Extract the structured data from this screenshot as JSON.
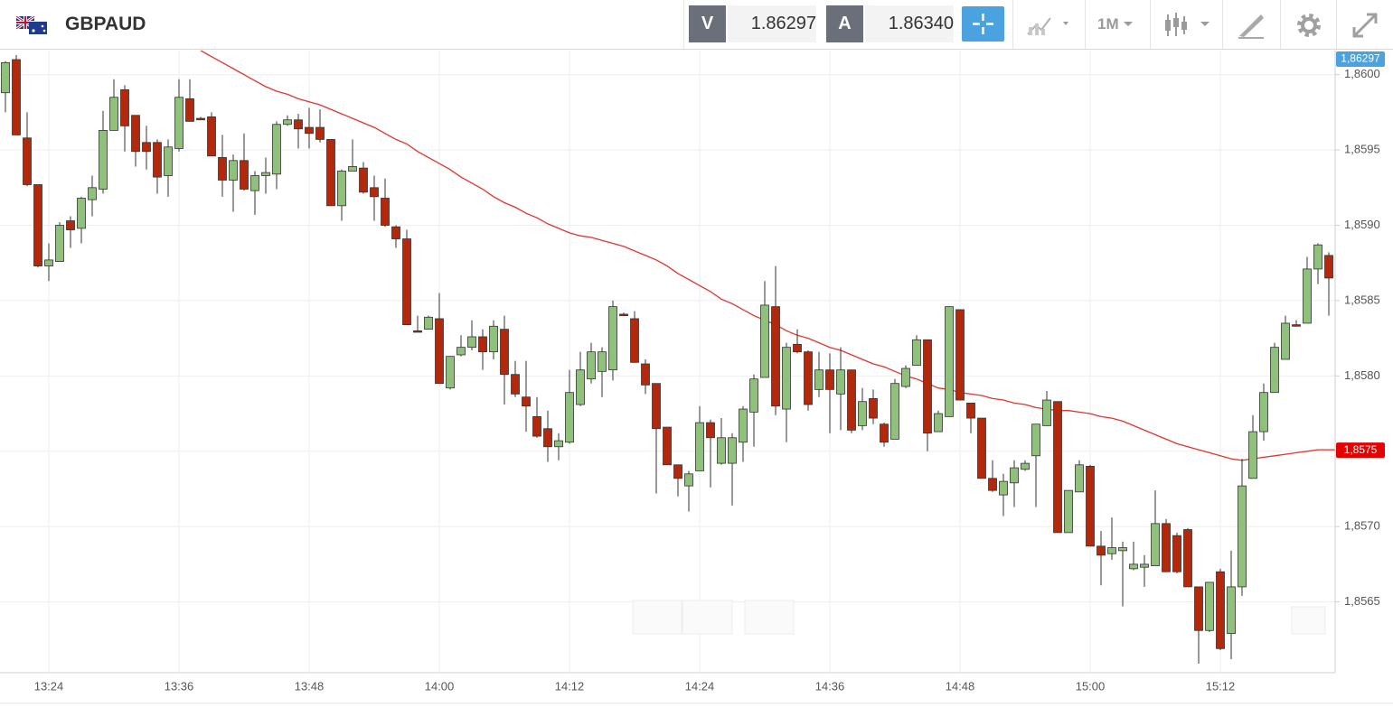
{
  "header": {
    "symbol": "GBPAUD",
    "sell_label": "V",
    "sell_price": "1.86297",
    "buy_label": "A",
    "buy_price": "1.86340",
    "timeframe": "1M"
  },
  "chart_data": {
    "type": "candlestick",
    "categories": [
      null,
      null,
      null,
      null,
      "13:24",
      null,
      null,
      null,
      null,
      null,
      null,
      null,
      null,
      null,
      null,
      null,
      "13:36",
      null,
      null,
      null,
      null,
      null,
      null,
      null,
      null,
      null,
      null,
      null,
      "13:48",
      null,
      null,
      null,
      null,
      null,
      null,
      null,
      null,
      null,
      null,
      null,
      "14:00",
      null,
      null,
      null,
      null,
      null,
      null,
      null,
      null,
      null,
      null,
      null,
      "14:12",
      null,
      null,
      null,
      null,
      null,
      null,
      null,
      null,
      null,
      null,
      null,
      "14:24",
      null,
      null,
      null,
      null,
      null,
      null,
      null,
      null,
      null,
      null,
      null,
      "14:36",
      null,
      null,
      null,
      null,
      null,
      null,
      null,
      null,
      null,
      null,
      null,
      "14:48",
      null,
      null,
      null,
      null,
      null,
      null,
      null,
      null,
      null,
      null,
      null,
      "15:00",
      null,
      null,
      null,
      null,
      null,
      null,
      null,
      null,
      null,
      null,
      null,
      "15:12",
      null,
      null,
      null,
      null,
      null,
      null,
      null,
      null,
      null,
      null
    ],
    "open": [
      1.85988,
      1.8601,
      1.85958,
      1.85927,
      1.85873,
      1.85876,
      1.85903,
      1.85898,
      1.85917,
      1.85924,
      1.85963,
      1.8599,
      1.85973,
      1.85955,
      1.85955,
      1.85933,
      1.85951,
      1.85984,
      1.85971,
      1.85972,
      1.85945,
      1.8593,
      1.85943,
      1.85923,
      1.85933,
      1.85934,
      1.85967,
      1.8597,
      1.85965,
      1.85965,
      1.85957,
      1.85913,
      1.85936,
      1.85938,
      1.85925,
      1.85918,
      1.85899,
      1.85891,
      1.8583,
      1.85831,
      1.85838,
      1.85792,
      1.85814,
      1.85819,
      1.85826,
      1.85816,
      1.85831,
      1.85801,
      1.85786,
      1.85773,
      1.85765,
      1.85753,
      1.85756,
      1.85781,
      1.85798,
      1.85803,
      1.85804,
      1.85841,
      1.85838,
      1.85808,
      1.85795,
      1.85766,
      1.85741,
      1.85727,
      1.85737,
      1.85769,
      1.85742,
      1.85742,
      1.85756,
      1.85776,
      1.85799,
      1.85846,
      1.85778,
      1.85821,
      1.85816,
      1.85791,
      1.85804,
      1.85788,
      1.85804,
      1.85767,
      1.85785,
      1.85768,
      1.85758,
      1.85793,
      1.85807,
      1.85824,
      1.85763,
      1.85773,
      1.85844,
      1.85782,
      1.85772,
      1.85732,
      1.85721,
      1.85729,
      1.85738,
      1.85747,
      1.85767,
      1.85783,
      1.85696,
      1.85723,
      1.8574,
      1.85687,
      1.85682,
      1.85684,
      1.85672,
      1.85673,
      1.85674,
      1.85702,
      1.85694,
      1.85698,
      1.8566,
      1.85631,
      1.8567,
      1.85629,
      1.8566,
      1.85732,
      1.85763,
      1.85789,
      1.85811,
      1.85834,
      1.85835,
      1.85871,
      1.8588
    ],
    "high": [
      1.86009,
      1.86013,
      1.85975,
      1.85927,
      1.85888,
      1.85902,
      1.85906,
      1.85919,
      1.85933,
      1.85976,
      1.85997,
      1.85993,
      1.85973,
      1.85966,
      1.85957,
      1.85957,
      1.85997,
      1.85997,
      1.85972,
      1.85975,
      1.8596,
      1.85947,
      1.85961,
      1.85936,
      1.85945,
      1.85969,
      1.85973,
      1.85974,
      1.85978,
      1.85977,
      1.85957,
      1.85937,
      1.85957,
      1.85942,
      1.85933,
      1.85931,
      1.859,
      1.85897,
      1.8584,
      1.8584,
      1.85855,
      1.85813,
      1.85827,
      1.85837,
      1.85831,
      1.85837,
      1.8584,
      1.8581,
      1.8581,
      1.85786,
      1.85777,
      1.85762,
      1.85804,
      1.85816,
      1.85822,
      1.85819,
      1.8585,
      1.85842,
      1.85843,
      1.85811,
      1.85795,
      1.85766,
      1.85741,
      1.85737,
      1.8578,
      1.85771,
      1.85772,
      1.85762,
      1.8578,
      1.85801,
      1.85863,
      1.85873,
      1.85822,
      1.85831,
      1.85817,
      1.85816,
      1.85815,
      1.85819,
      1.85804,
      1.85792,
      1.85791,
      1.85769,
      1.85798,
      1.85807,
      1.85827,
      1.85824,
      1.85777,
      1.85846,
      1.85844,
      1.85782,
      1.85772,
      1.85744,
      1.85735,
      1.85744,
      1.85744,
      1.85768,
      1.8579,
      1.85783,
      1.85724,
      1.85744,
      1.85741,
      1.85697,
      1.85706,
      1.8569,
      1.8569,
      1.85681,
      1.85724,
      1.85705,
      1.85696,
      1.85699,
      1.8566,
      1.85663,
      1.85672,
      1.85684,
      1.85745,
      1.85774,
      1.85795,
      1.85822,
      1.8584,
      1.85837,
      1.85879,
      1.85888,
      1.85882
    ],
    "low": [
      1.85975,
      1.8596,
      1.85926,
      1.85872,
      1.85863,
      1.85876,
      1.85885,
      1.85888,
      1.85906,
      1.85921,
      1.85963,
      1.85949,
      1.85939,
      1.85937,
      1.85921,
      1.85919,
      1.85949,
      1.85969,
      1.8597,
      1.85946,
      1.85919,
      1.85909,
      1.85923,
      1.85907,
      1.85921,
      1.85924,
      1.85966,
      1.85951,
      1.85951,
      1.85955,
      1.85913,
      1.85903,
      1.85936,
      1.85921,
      1.85903,
      1.85899,
      1.85885,
      1.85834,
      1.85829,
      1.85831,
      1.85795,
      1.85791,
      1.85813,
      1.85817,
      1.85804,
      1.85811,
      1.85781,
      1.85786,
      1.85763,
      1.85759,
      1.85743,
      1.85744,
      1.85755,
      1.8578,
      1.85795,
      1.85786,
      1.85797,
      1.8584,
      1.85809,
      1.85788,
      1.85722,
      1.85741,
      1.8572,
      1.8571,
      1.85737,
      1.85726,
      1.85741,
      1.85714,
      1.85743,
      1.85753,
      1.85799,
      1.85774,
      1.85756,
      1.85815,
      1.85777,
      1.85786,
      1.85762,
      1.85764,
      1.85762,
      1.85764,
      1.85768,
      1.85753,
      1.85758,
      1.85792,
      1.85807,
      1.8575,
      1.85763,
      1.85773,
      1.85784,
      1.85762,
      1.85732,
      1.85723,
      1.85707,
      1.85713,
      1.85737,
      1.85713,
      1.85767,
      1.85696,
      1.85696,
      1.85723,
      1.85687,
      1.85661,
      1.85678,
      1.85647,
      1.85671,
      1.8566,
      1.85674,
      1.8567,
      1.85669,
      1.8566,
      1.85609,
      1.8563,
      1.85618,
      1.85612,
      1.85654,
      1.85732,
      1.85757,
      1.85789,
      1.85811,
      1.85833,
      1.85835,
      1.85861,
      1.8584
    ],
    "close": [
      1.86008,
      1.8596,
      1.85927,
      1.85873,
      1.85877,
      1.859,
      1.85897,
      1.85918,
      1.85925,
      1.85963,
      1.85985,
      1.85966,
      1.85949,
      1.85949,
      1.85932,
      1.85952,
      1.85985,
      1.85969,
      1.8597,
      1.85946,
      1.8593,
      1.85943,
      1.85924,
      1.85933,
      1.85935,
      1.85967,
      1.8597,
      1.85964,
      1.85961,
      1.85957,
      1.85913,
      1.85936,
      1.85939,
      1.85922,
      1.85919,
      1.859,
      1.85891,
      1.85834,
      1.85829,
      1.85839,
      1.85795,
      1.85813,
      1.85819,
      1.85826,
      1.85816,
      1.85833,
      1.85801,
      1.85788,
      1.8578,
      1.8576,
      1.85753,
      1.85757,
      1.85789,
      1.85804,
      1.85816,
      1.85816,
      1.85846,
      1.8584,
      1.85809,
      1.85794,
      1.85765,
      1.85741,
      1.85732,
      1.85735,
      1.85769,
      1.85759,
      1.85759,
      1.85759,
      1.85778,
      1.85798,
      1.85847,
      1.8578,
      1.85819,
      1.85816,
      1.85781,
      1.85804,
      1.85791,
      1.85804,
      1.85764,
      1.85783,
      1.85772,
      1.85756,
      1.85795,
      1.85805,
      1.85824,
      1.85762,
      1.85775,
      1.85846,
      1.85784,
      1.85772,
      1.85732,
      1.85724,
      1.8573,
      1.85739,
      1.85742,
      1.85768,
      1.85784,
      1.85696,
      1.85724,
      1.85741,
      1.85687,
      1.85681,
      1.85686,
      1.85686,
      1.85675,
      1.85675,
      1.85702,
      1.8567,
      1.8567,
      1.8566,
      1.85631,
      1.85663,
      1.85619,
      1.8566,
      1.85727,
      1.85763,
      1.85789,
      1.85819,
      1.85835,
      1.85833,
      1.85871,
      1.85887,
      1.85865
    ],
    "up_color": "#8fc07c",
    "down_color": "#b3290e",
    "moving_average": {
      "color": "#e8322b",
      "values": [
        null,
        null,
        null,
        null,
        null,
        null,
        null,
        null,
        null,
        null,
        null,
        null,
        null,
        null,
        null,
        null,
        null,
        null,
        1.86016,
        1.86012,
        1.86008,
        1.86004,
        1.86,
        1.85996,
        1.85992,
        1.85989,
        1.85987,
        1.85984,
        1.85982,
        1.8598,
        1.85977,
        1.85974,
        1.85971,
        1.85968,
        1.85965,
        1.85961,
        1.85957,
        1.85954,
        1.85949,
        1.85945,
        1.85941,
        1.85937,
        1.85932,
        1.85928,
        1.85924,
        1.85919,
        1.85915,
        1.85912,
        1.85908,
        1.85905,
        1.85901,
        1.85898,
        1.85895,
        1.85893,
        1.85892,
        1.8589,
        1.85888,
        1.85886,
        1.85883,
        1.8588,
        1.85877,
        1.85873,
        1.85868,
        1.85864,
        1.8586,
        1.85856,
        1.85851,
        1.85848,
        1.85844,
        1.8584,
        1.85837,
        1.85834,
        1.8583,
        1.85827,
        1.85825,
        1.85822,
        1.85819,
        1.85817,
        1.85814,
        1.85811,
        1.85808,
        1.85806,
        1.85803,
        1.858,
        1.85798,
        1.85795,
        1.85792,
        1.85791,
        1.85789,
        1.85788,
        1.85787,
        1.85785,
        1.85784,
        1.85782,
        1.85781,
        1.85779,
        1.85778,
        1.85777,
        1.85777,
        1.85776,
        1.85775,
        1.85773,
        1.85772,
        1.8577,
        1.85767,
        1.85764,
        1.85761,
        1.85758,
        1.85755,
        1.85753,
        1.85751,
        1.85749,
        1.85747,
        1.85745,
        1.85744,
        1.85745,
        1.85746,
        1.85747,
        1.85748,
        1.85749,
        1.8575,
        1.85751,
        1.85751
      ]
    },
    "ylim": [
      1.85603,
      1.86016
    ],
    "yticks": [
      {
        "value": 1.8565,
        "label": "1,8565"
      },
      {
        "value": 1.857,
        "label": "1,8570"
      },
      {
        "value": 1.8575,
        "label": "1,8575"
      },
      {
        "value": 1.858,
        "label": "1,8580"
      },
      {
        "value": 1.8585,
        "label": "1,8585"
      },
      {
        "value": 1.859,
        "label": "1,8590"
      },
      {
        "value": 1.8595,
        "label": "1,8595"
      },
      {
        "value": 1.86,
        "label": "1,8600"
      }
    ],
    "grid": true,
    "price_tags": [
      {
        "label": "1,86297",
        "color": "#4aa3df"
      },
      {
        "label": "1,8575",
        "color": "#e60000"
      }
    ]
  }
}
